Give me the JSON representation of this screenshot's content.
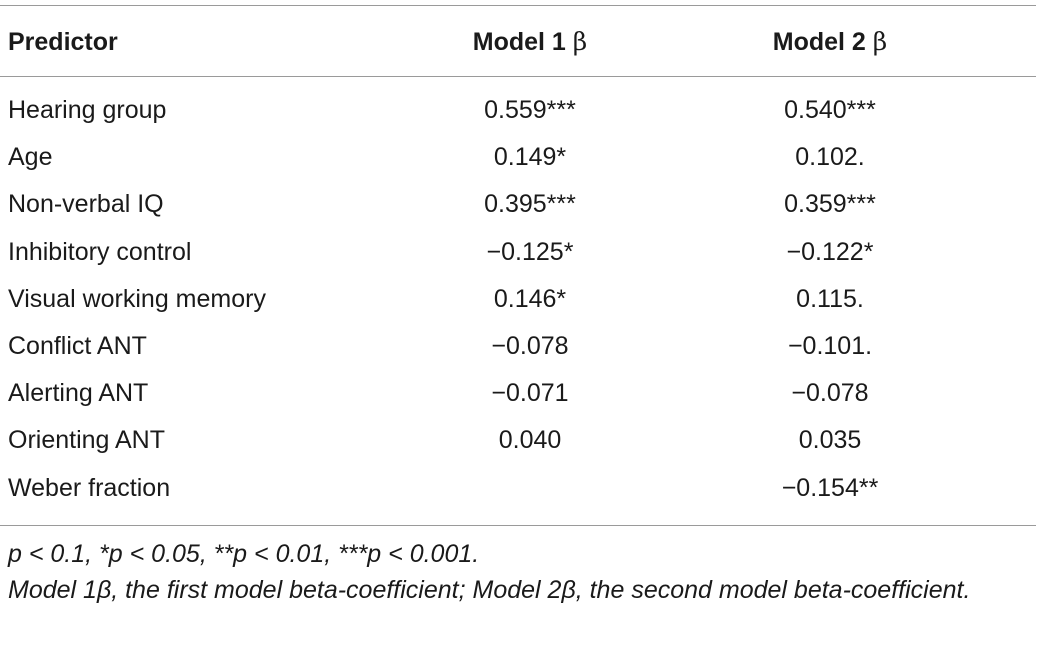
{
  "table": {
    "headers": {
      "predictor": "Predictor",
      "model1": "Model 1",
      "model2": "Model 2",
      "beta_symbol": "β"
    },
    "rows": [
      {
        "predictor": "Hearing group",
        "model1": "0.559***",
        "model2": "0.540***"
      },
      {
        "predictor": "Age",
        "model1": "0.149*",
        "model2": "0.102."
      },
      {
        "predictor": "Non-verbal IQ",
        "model1": "0.395***",
        "model2": "0.359***"
      },
      {
        "predictor": "Inhibitory control",
        "model1": "−0.125*",
        "model2": "−0.122*"
      },
      {
        "predictor": "Visual working memory",
        "model1": "0.146*",
        "model2": "0.115."
      },
      {
        "predictor": "Conflict ANT",
        "model1": "−0.078",
        "model2": "−0.101."
      },
      {
        "predictor": "Alerting ANT",
        "model1": "−0.071",
        "model2": "−0.078"
      },
      {
        "predictor": "Orienting ANT",
        "model1": "0.040",
        "model2": "0.035"
      },
      {
        "predictor": "Weber fraction",
        "model1": "",
        "model2": "−0.154**"
      }
    ]
  },
  "footnotes": {
    "significance": "p < 0.1, *p < 0.05, **p < 0.01, ***p < 0.001.",
    "definition": "Model 1β, the first model beta-coefficient; Model 2β, the second model beta-coefficient."
  }
}
